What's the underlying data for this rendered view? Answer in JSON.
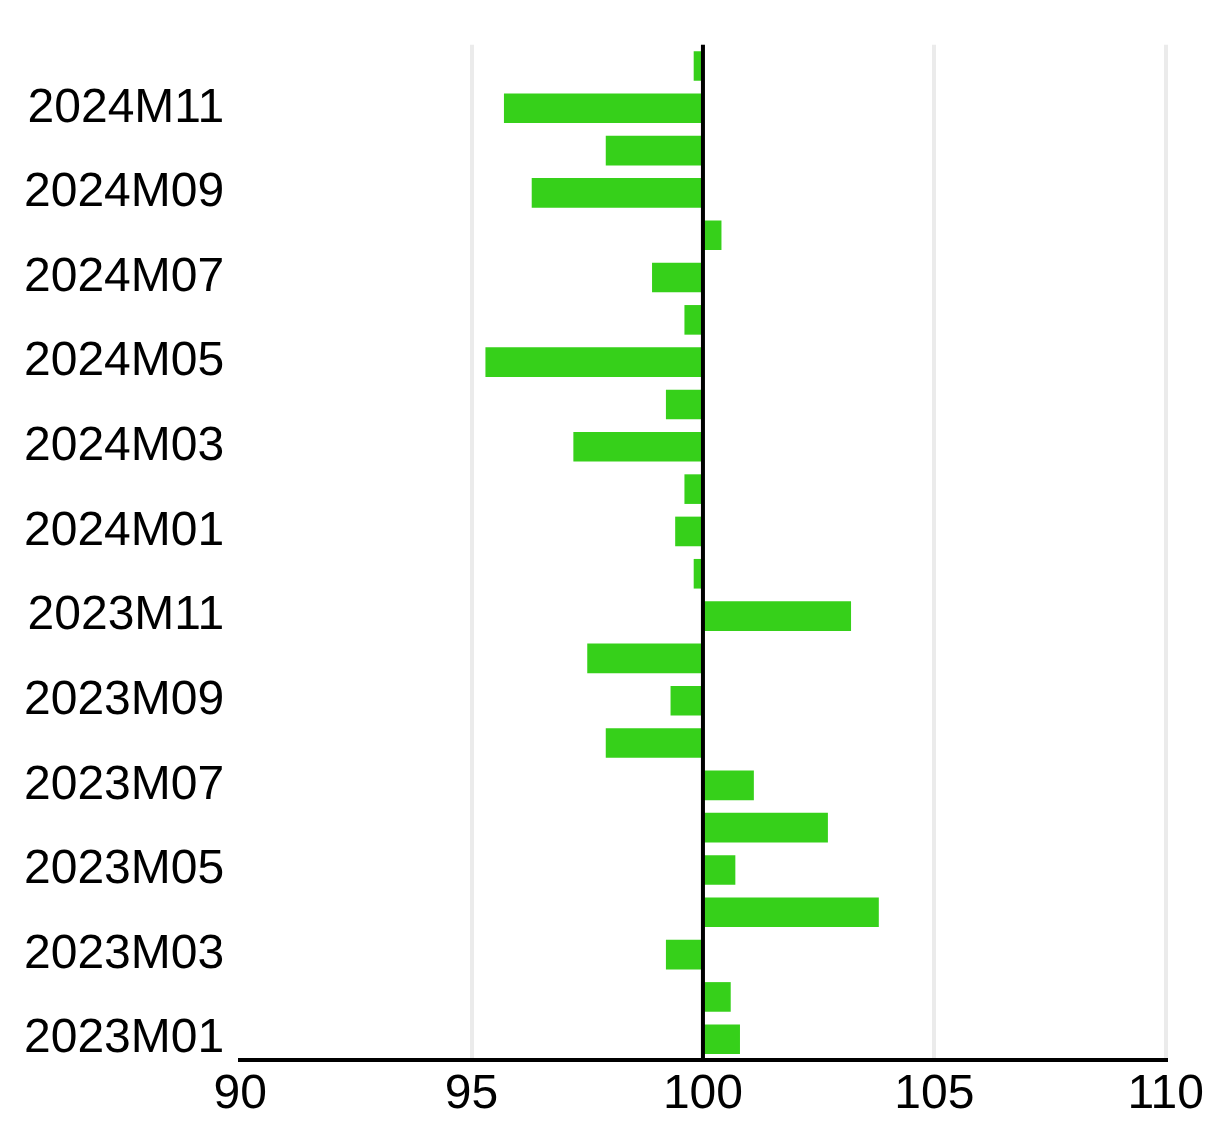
{
  "chart_data": {
    "type": "bar",
    "orientation": "horizontal",
    "categories": [
      null,
      "2024M11",
      null,
      "2024M09",
      null,
      "2024M07",
      null,
      "2024M05",
      null,
      "2024M03",
      null,
      "2024M01",
      null,
      "2023M11",
      null,
      "2023M09",
      null,
      "2023M07",
      null,
      "2023M05",
      null,
      "2023M03",
      null,
      "2023M01"
    ],
    "base": [
      100,
      100,
      100,
      100,
      100,
      100,
      100,
      100,
      100,
      100,
      100,
      100,
      100,
      100,
      100,
      100,
      100,
      100,
      100,
      100,
      100,
      100,
      100,
      100
    ],
    "values": [
      -0.2,
      -4.3,
      -2.1,
      -3.7,
      0.4,
      -1.1,
      -0.4,
      -4.7,
      -0.8,
      -2.8,
      -0.4,
      -0.6,
      -0.2,
      3.2,
      -2.5,
      -0.7,
      -2.1,
      1.1,
      2.7,
      0.7,
      3.8,
      -0.8,
      0.6,
      0.8
    ],
    "color": "#36d01a",
    "xlim": [
      90,
      110
    ],
    "xticks": [
      90,
      95,
      100,
      105,
      110
    ],
    "ref_lines": [
      {
        "axis": "x",
        "value": 100,
        "color": "#000000"
      }
    ],
    "grid": "x",
    "legend": false
  }
}
